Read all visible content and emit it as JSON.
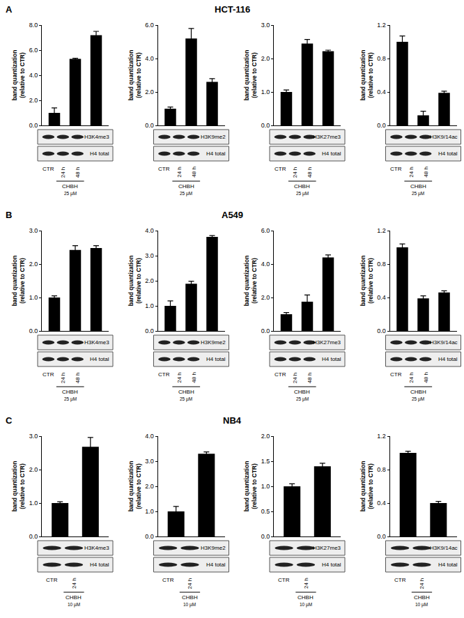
{
  "panels": [
    {
      "letter": "A",
      "title": "HCT-116",
      "treatment": "CHBH",
      "dose": "25 µM"
    },
    {
      "letter": "B",
      "title": "A549",
      "treatment": "CHBH",
      "dose": "25 µM"
    },
    {
      "letter": "C",
      "title": "NB4",
      "treatment": "CHBH",
      "dose": "10 µM"
    }
  ],
  "chart_data": [
    {
      "type": "bar",
      "panel": "A",
      "y_label": "band quantization\n(relative to CTR)",
      "categories": [
        "CTR",
        "24 h",
        "48 h"
      ],
      "values": [
        1.0,
        5.3,
        7.2
      ],
      "errors": [
        0.4,
        0.05,
        0.3
      ],
      "color": "#000000",
      "ylim": [
        0,
        8
      ],
      "yticks": [
        {
          "value": 0,
          "label": "0.0"
        },
        {
          "value": 2,
          "label": "2.0"
        },
        {
          "value": 4,
          "label": "4.0"
        },
        {
          "value": 6,
          "label": "6.0"
        },
        {
          "value": 8,
          "label": "8.0"
        }
      ],
      "tick_labels": "y",
      "annotations": [
        "H3K4me3",
        "H4 total"
      ]
    },
    {
      "type": "bar",
      "panel": "A",
      "y_label": "band quantization\n(relative to CTR)",
      "categories": [
        "CTR",
        "24 h",
        "48 h"
      ],
      "values": [
        1.0,
        5.2,
        2.6
      ],
      "errors": [
        0.1,
        0.6,
        0.2
      ],
      "color": "#000000",
      "ylim": [
        0,
        6
      ],
      "yticks": [
        {
          "value": 0,
          "label": "0.0"
        },
        {
          "value": 2,
          "label": "2.0"
        },
        {
          "value": 4,
          "label": "4.0"
        },
        {
          "value": 6,
          "label": "6.0"
        }
      ],
      "tick_labels": "y",
      "annotations": [
        "H3K9me2",
        "H4 total"
      ]
    },
    {
      "type": "bar",
      "panel": "A",
      "y_label": "band quantization\n(relative to CTR)",
      "categories": [
        "CTR",
        "24 h",
        "48 h"
      ],
      "values": [
        1.0,
        2.45,
        2.22
      ],
      "errors": [
        0.06,
        0.12,
        0.03
      ],
      "color": "#000000",
      "ylim": [
        0,
        3
      ],
      "yticks": [
        {
          "value": 0,
          "label": "0.0"
        },
        {
          "value": 1,
          "label": "1.0"
        },
        {
          "value": 2,
          "label": "2.0"
        },
        {
          "value": 3,
          "label": "3.0"
        }
      ],
      "tick_labels": "y",
      "annotations": [
        "H3K27me3",
        "H4 total"
      ]
    },
    {
      "type": "bar",
      "panel": "A",
      "y_label": "band quantization\n(relative to CTR)",
      "categories": [
        "CTR",
        "24 h",
        "48 h"
      ],
      "values": [
        1.0,
        0.12,
        0.39
      ],
      "errors": [
        0.07,
        0.05,
        0.02
      ],
      "color": "#000000",
      "ylim": [
        0,
        1.2
      ],
      "yticks": [
        {
          "value": 0,
          "label": "0.0"
        },
        {
          "value": 0.4,
          "label": "0.4"
        },
        {
          "value": 0.8,
          "label": "0.8"
        },
        {
          "value": 1.2,
          "label": "1.2"
        }
      ],
      "tick_labels": "y",
      "annotations": [
        "H3K9/14ac",
        "H4 total"
      ]
    },
    {
      "type": "bar",
      "panel": "B",
      "y_label": "band quantization\n(relative to CTR)",
      "categories": [
        "CTR",
        "24 h",
        "48 h"
      ],
      "values": [
        1.0,
        2.42,
        2.48
      ],
      "errors": [
        0.05,
        0.13,
        0.07
      ],
      "color": "#000000",
      "ylim": [
        0,
        3
      ],
      "yticks": [
        {
          "value": 0,
          "label": "0.0"
        },
        {
          "value": 1,
          "label": "1.0"
        },
        {
          "value": 2,
          "label": "2.0"
        },
        {
          "value": 3,
          "label": "3.0"
        }
      ],
      "tick_labels": "y",
      "annotations": [
        "H3K4me3",
        "H4 total"
      ]
    },
    {
      "type": "bar",
      "panel": "B",
      "y_label": "band quantization\n(relative to CTR)",
      "categories": [
        "CTR",
        "24 h",
        "48 h"
      ],
      "values": [
        1.0,
        1.88,
        3.75
      ],
      "errors": [
        0.2,
        0.1,
        0.05
      ],
      "color": "#000000",
      "ylim": [
        0,
        4
      ],
      "yticks": [
        {
          "value": 0,
          "label": "0.0"
        },
        {
          "value": 1,
          "label": "1.0"
        },
        {
          "value": 2,
          "label": "2.0"
        },
        {
          "value": 3,
          "label": "3.0"
        },
        {
          "value": 4,
          "label": "4.0"
        }
      ],
      "tick_labels": "y",
      "annotations": [
        "H3K9me2",
        "H4 total"
      ]
    },
    {
      "type": "bar",
      "panel": "B",
      "y_label": "band quantization\n(relative to CTR)",
      "categories": [
        "CTR",
        "24 h",
        "48 h"
      ],
      "values": [
        1.0,
        1.75,
        4.4
      ],
      "errors": [
        0.1,
        0.4,
        0.15
      ],
      "color": "#000000",
      "ylim": [
        0,
        6
      ],
      "yticks": [
        {
          "value": 0,
          "label": "0.0"
        },
        {
          "value": 2,
          "label": "2.0"
        },
        {
          "value": 4,
          "label": "4.0"
        },
        {
          "value": 6,
          "label": "6.0"
        }
      ],
      "tick_labels": "y",
      "annotations": [
        "H3K27me3",
        "H4 total"
      ]
    },
    {
      "type": "bar",
      "panel": "B",
      "y_label": "band quantization\n(relative to CTR)",
      "categories": [
        "CTR",
        "24 h",
        "48 h"
      ],
      "values": [
        1.0,
        0.39,
        0.46
      ],
      "errors": [
        0.04,
        0.03,
        0.02
      ],
      "color": "#000000",
      "ylim": [
        0,
        1.2
      ],
      "yticks": [
        {
          "value": 0,
          "label": "0.0"
        },
        {
          "value": 0.4,
          "label": "0.4"
        },
        {
          "value": 0.8,
          "label": "0.8"
        },
        {
          "value": 1.2,
          "label": "1.2"
        }
      ],
      "tick_labels": "y",
      "annotations": [
        "H3K9/14ac",
        "H4 total"
      ]
    },
    {
      "type": "bar",
      "panel": "C",
      "y_label": "band quantization\n(relative to CTR)",
      "categories": [
        "CTR",
        "24 h"
      ],
      "values": [
        1.0,
        2.68
      ],
      "errors": [
        0.04,
        0.28
      ],
      "color": "#000000",
      "ylim": [
        0,
        3
      ],
      "yticks": [
        {
          "value": 0,
          "label": "0.0"
        },
        {
          "value": 1,
          "label": "1.0"
        },
        {
          "value": 2,
          "label": "2.0"
        },
        {
          "value": 3,
          "label": "3.0"
        }
      ],
      "tick_labels": "y",
      "annotations": [
        "H3K4me3",
        "H4 total"
      ]
    },
    {
      "type": "bar",
      "panel": "C",
      "y_label": "band quantization\n(relative to CTR)",
      "categories": [
        "CTR",
        "24 h"
      ],
      "values": [
        1.0,
        3.3
      ],
      "errors": [
        0.2,
        0.07
      ],
      "color": "#000000",
      "ylim": [
        0,
        4
      ],
      "yticks": [
        {
          "value": 0,
          "label": "0.0"
        },
        {
          "value": 1,
          "label": "1.0"
        },
        {
          "value": 2,
          "label": "2.0"
        },
        {
          "value": 3,
          "label": "3.0"
        },
        {
          "value": 4,
          "label": "4.0"
        }
      ],
      "tick_labels": "y",
      "annotations": [
        "H3K9me2",
        "H4 total"
      ]
    },
    {
      "type": "bar",
      "panel": "C",
      "y_label": "band quantization\n(relative to CTR)",
      "categories": [
        "CTR",
        "24 h"
      ],
      "values": [
        1.0,
        1.4
      ],
      "errors": [
        0.05,
        0.06
      ],
      "color": "#000000",
      "ylim": [
        0,
        2
      ],
      "yticks": [
        {
          "value": 0,
          "label": "0.0"
        },
        {
          "value": 0.5,
          "label": "0.5"
        },
        {
          "value": 1,
          "label": "1.0"
        },
        {
          "value": 1.5,
          "label": "1.5"
        },
        {
          "value": 2,
          "label": "2.0"
        }
      ],
      "tick_labels": "y",
      "annotations": [
        "H3K27me3",
        "H4 total"
      ]
    },
    {
      "type": "bar",
      "panel": "C",
      "y_label": "band quantization\n(relative to CTR)",
      "categories": [
        "CTR",
        "24 h"
      ],
      "values": [
        1.0,
        0.4
      ],
      "errors": [
        0.02,
        0.02
      ],
      "color": "#000000",
      "ylim": [
        0,
        1.2
      ],
      "yticks": [
        {
          "value": 0,
          "label": "0.0"
        },
        {
          "value": 0.4,
          "label": "0.4"
        },
        {
          "value": 0.8,
          "label": "0.8"
        },
        {
          "value": 1.2,
          "label": "1.2"
        }
      ],
      "tick_labels": "y",
      "annotations": [
        "H3K9/14ac",
        "H4 total"
      ]
    }
  ]
}
